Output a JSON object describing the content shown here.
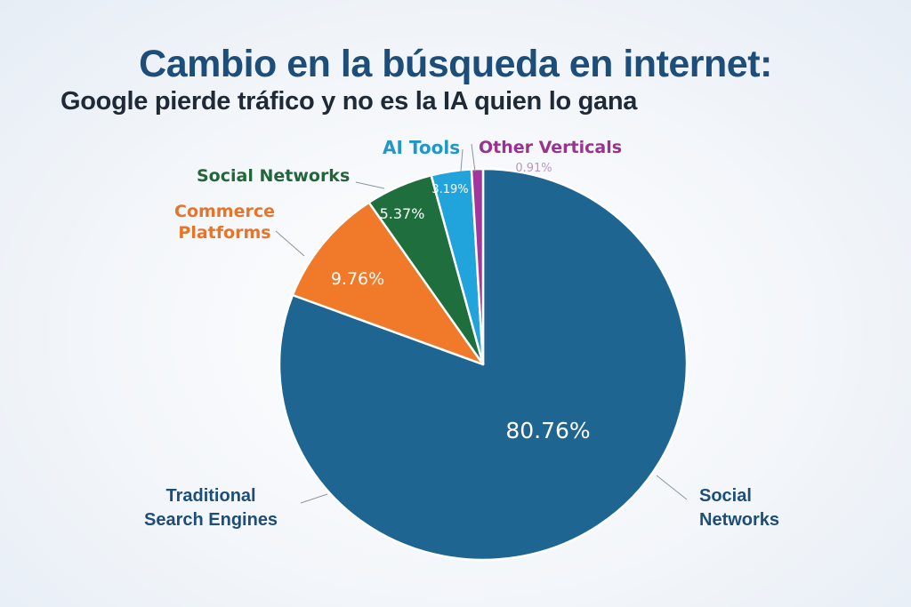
{
  "title": "Cambio en la búsqueda en internet:",
  "subtitle": "Google pierde tráfico y no es la IA quien lo gana",
  "labels": {
    "other_verticals": "Other Verticals",
    "other_verticals_pct": "0.91%",
    "ai_tools": "AI Tools",
    "social_networks_top": "Social Networks",
    "commerce_line1": "Commerce",
    "commerce_line2": "Platforms",
    "traditional_line1": "Traditional",
    "traditional_line2": "Search Engines",
    "social_right_line1": "Social",
    "social_right_line2": "Networks"
  },
  "slice_labels": {
    "traditional": "80.76%",
    "commerce": "9.76%",
    "social": "5.37%",
    "ai": "3.19%"
  },
  "colors": {
    "traditional": "#1f6591",
    "commerce": "#f07a2a",
    "social": "#1f6e3e",
    "ai": "#21a3dc",
    "other": "#a3369c",
    "title": "#1d4e7a"
  },
  "chart_data": {
    "type": "pie",
    "title": "Cambio en la búsqueda en internet:",
    "subtitle": "Google pierde tráfico y no es la IA quien lo gana",
    "categories": [
      "Traditional Search Engines",
      "Commerce Platforms",
      "Social Networks",
      "AI Tools",
      "Other Verticals"
    ],
    "values": [
      80.76,
      9.76,
      5.37,
      3.19,
      0.91
    ],
    "unit": "%",
    "colors": [
      "#1f6591",
      "#f07a2a",
      "#1f6e3e",
      "#21a3dc",
      "#a3369c"
    ],
    "annotations": [
      "Social Networks (label pointing to large blue slice, right side)"
    ],
    "legend": "none (callout labels)"
  }
}
